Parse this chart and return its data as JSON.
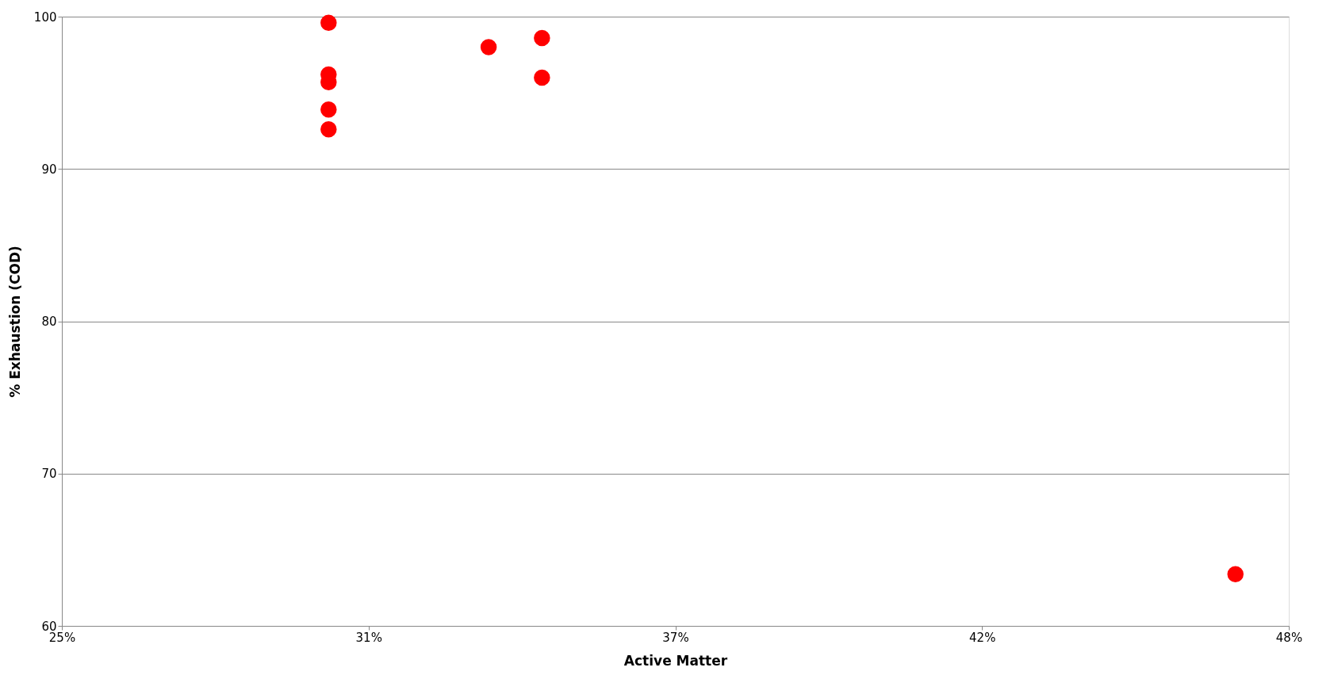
{
  "chart_data": {
    "type": "scatter",
    "xlabel": "Active Matter",
    "ylabel": "% Exhaustion (COD)",
    "x": [
      0.3,
      0.3,
      0.3,
      0.3,
      0.3,
      0.33,
      0.34,
      0.34,
      0.47
    ],
    "series": [
      {
        "color": "#ff0000",
        "values": [
          99.6,
          96.2,
          95.7,
          93.9,
          92.6,
          98.0,
          98.6,
          96.0,
          63.4
        ]
      }
    ],
    "xlim": [
      0.25,
      0.48
    ],
    "xticks": [
      {
        "value": 0.25,
        "label": "25%"
      },
      {
        "value": 0.3075,
        "label": "31%"
      },
      {
        "value": 0.365,
        "label": "37%"
      },
      {
        "value": 0.4225,
        "label": "42%"
      },
      {
        "value": 0.48,
        "label": "48%"
      }
    ],
    "ylim": [
      60,
      100
    ],
    "yticks": [
      60,
      70,
      80,
      90,
      100
    ],
    "grid": "y",
    "marker": "circle"
  }
}
